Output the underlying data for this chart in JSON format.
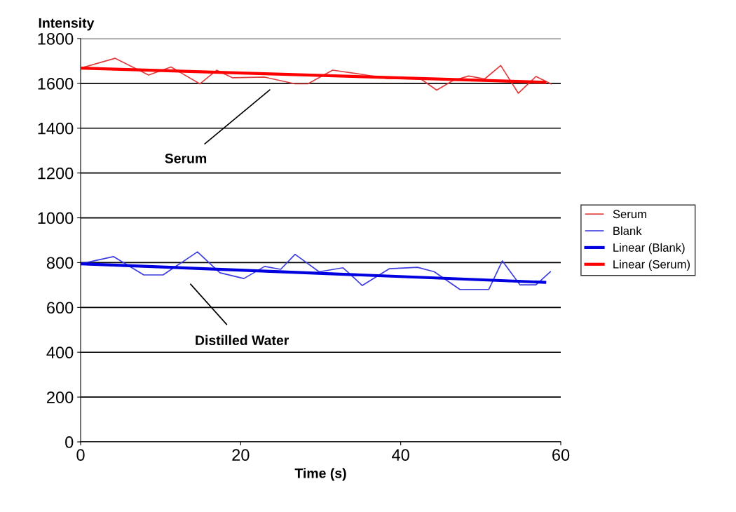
{
  "chart_data": {
    "type": "line",
    "xlabel": "Time (s)",
    "ylabel": "Intensity",
    "xlim": [
      0,
      60
    ],
    "xticks": [
      0,
      20,
      40,
      60
    ],
    "ylim": [
      0,
      1800
    ],
    "yticks": [
      0,
      200,
      400,
      600,
      800,
      1000,
      1200,
      1400,
      1600,
      1800
    ],
    "grid": "y",
    "legend": "right",
    "marker": "none",
    "series": [
      {
        "name": "Serum",
        "color": "#e03c3c",
        "x": [
          0,
          4.3,
          8.5,
          11.3,
          14.9,
          17,
          19,
          23,
          26.8,
          28.4,
          31.5,
          35,
          38.3,
          42.5,
          44.5,
          46.5,
          48.5,
          50.5,
          52.5,
          54.7,
          56.9,
          58.8
        ],
        "values": [
          1668,
          1712,
          1637,
          1673,
          1598,
          1659,
          1625,
          1628,
          1598,
          1598,
          1659,
          1641,
          1622,
          1620,
          1570,
          1612,
          1633,
          1620,
          1680,
          1556,
          1631,
          1598
        ]
      },
      {
        "name": "Blank",
        "color": "#3c3ce0",
        "x": [
          0,
          4.1,
          7.9,
          10.3,
          14.6,
          17.4,
          20.4,
          23,
          25,
          26.8,
          29.8,
          32.8,
          35.2,
          38.6,
          42.1,
          44.2,
          47.4,
          51,
          52.7,
          54.9,
          56.9,
          58.7
        ],
        "values": [
          795,
          827,
          745,
          745,
          848,
          755,
          729,
          783,
          770,
          837,
          759,
          777,
          698,
          773,
          779,
          759,
          680,
          680,
          808,
          701,
          701,
          759
        ]
      },
      {
        "name": "Linear (Blank)",
        "color": "#0000e0",
        "x": [
          0,
          58
        ],
        "values": [
          795,
          712
        ]
      },
      {
        "name": "Linear (Serum)",
        "color": "#ff0000",
        "x": [
          0,
          58
        ],
        "values": [
          1668,
          1605
        ]
      }
    ],
    "annotations": [
      "Serum",
      "Distilled Water"
    ]
  }
}
